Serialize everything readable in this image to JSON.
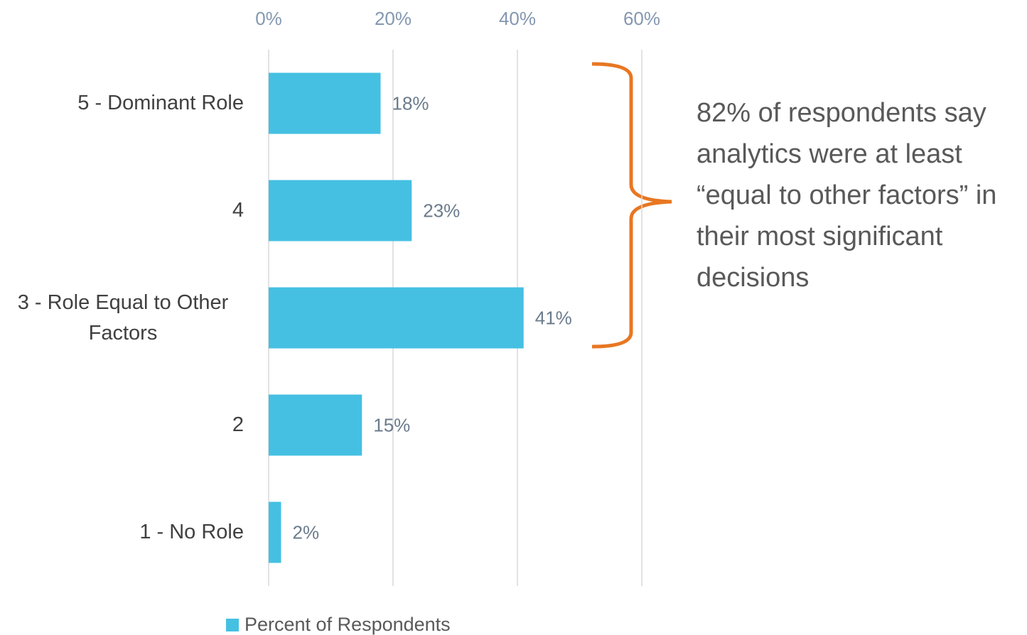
{
  "chart_data": {
    "type": "bar",
    "orientation": "horizontal",
    "categories": [
      "5 - Dominant Role",
      "4",
      "3 - Role Equal to Other Factors",
      "2",
      "1 - No Role"
    ],
    "series": [
      {
        "name": "Percent of Respondents",
        "color": "#45c0e2",
        "values": [
          18,
          23,
          41,
          15,
          2
        ],
        "value_labels": [
          "18%",
          "23%",
          "41%",
          "15%",
          "2%"
        ]
      }
    ],
    "xlim": [
      0,
      60
    ],
    "xticks": [
      {
        "value": 0,
        "label": "0%"
      },
      {
        "value": 20,
        "label": "20%"
      },
      {
        "value": 40,
        "label": "40%"
      },
      {
        "value": 60,
        "label": "60%"
      }
    ],
    "grid": true,
    "legend": "bottom",
    "annotation": "82% of respondents say analytics were at least “equal to other factors” in their most significant decisions",
    "annotation_color": "#e87722"
  }
}
